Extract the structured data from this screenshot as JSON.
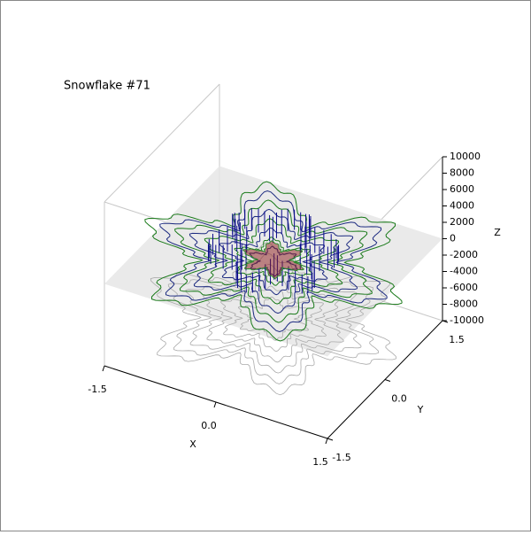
{
  "chart_data": {
    "type": "surface3d",
    "title": "Snowflake #71",
    "xlabel": "X",
    "ylabel": "Y",
    "zlabel": "Z",
    "xlim": [
      -1.5,
      1.5
    ],
    "ylim": [
      -1.5,
      1.5
    ],
    "zlim": [
      -10000,
      10000
    ],
    "xticks": [
      -1.5,
      {
        "value": 0,
        "label": "0.0"
      },
      1.5
    ],
    "yticks": [
      -1.5,
      {
        "value": 0,
        "label": "0.0"
      },
      1.5
    ],
    "zticks": [
      -10000,
      -8000,
      -6000,
      -4000,
      -2000,
      0,
      2000,
      4000,
      6000,
      8000,
      10000
    ],
    "grid": false
  }
}
